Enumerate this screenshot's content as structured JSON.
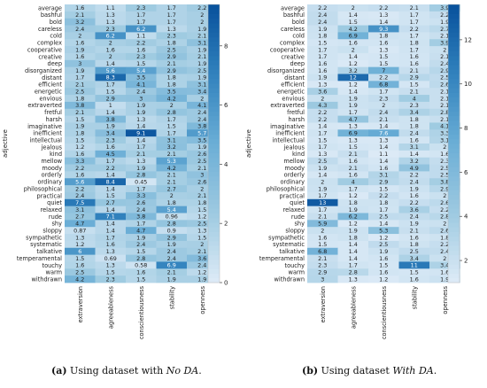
{
  "chart_data": [
    {
      "type": "heatmap",
      "ylabel": "adjective",
      "rows": [
        "average",
        "bashful",
        "bold",
        "careless",
        "cold",
        "complex",
        "cooperative",
        "creative",
        "deep",
        "disorganized",
        "distant",
        "efficient",
        "energetic",
        "envious",
        "extraverted",
        "fretful",
        "harsh",
        "imaginative",
        "inefficient",
        "intellectual",
        "jealous",
        "kind",
        "mellow",
        "moody",
        "orderly",
        "ordinary",
        "philosophical",
        "practical",
        "quiet",
        "relaxed",
        "rude",
        "shy",
        "sloppy",
        "sympathetic",
        "systematic",
        "talkative",
        "temperamental",
        "touchy",
        "warm",
        "withdrawn"
      ],
      "columns": [
        "extraversion",
        "agreeableness",
        "conscientiousness",
        "stability",
        "openness"
      ],
      "values": [
        [
          1.6,
          1.1,
          2.3,
          1.7,
          2.2
        ],
        [
          2.1,
          1.3,
          1.7,
          1.7,
          2
        ],
        [
          3.2,
          1.3,
          1.7,
          1.7,
          2
        ],
        [
          2.4,
          2.3,
          6.2,
          1.3,
          1.9
        ],
        [
          2,
          6.2,
          1.1,
          2.3,
          2.1
        ],
        [
          1.6,
          2,
          2.2,
          1.8,
          3.1
        ],
        [
          1.9,
          1.6,
          1.6,
          2.5,
          1.9
        ],
        [
          1.6,
          2,
          2.3,
          2.9,
          2.1
        ],
        [
          3,
          1.4,
          1.5,
          2.1,
          1.9
        ],
        [
          1.9,
          5.6,
          5.4,
          2.9,
          2.5
        ],
        [
          1.7,
          8.3,
          3.5,
          1.8,
          1.9
        ],
        [
          2.1,
          1.7,
          4.1,
          1.8,
          3.1
        ],
        [
          2.5,
          1.5,
          2.4,
          3.5,
          3.4
        ],
        [
          1.8,
          2.9,
          3,
          4.2,
          2
        ],
        [
          3.8,
          1,
          1.9,
          2,
          4.1
        ],
        [
          2.1,
          1.4,
          1.9,
          2.8,
          2.4
        ],
        [
          1.5,
          3.8,
          1.3,
          1.7,
          2.4
        ],
        [
          1.9,
          1.9,
          1.4,
          1.5,
          3.8
        ],
        [
          1.8,
          3.4,
          9.1,
          1.7,
          5.7
        ],
        [
          1.5,
          2.3,
          1.4,
          3.1,
          3.5
        ],
        [
          1.2,
          1.6,
          1.7,
          3.2,
          1.9
        ],
        [
          1.6,
          4.5,
          2.1,
          2.1,
          2.6
        ],
        [
          3.3,
          1.7,
          1.3,
          5.3,
          2.5
        ],
        [
          2.2,
          2.2,
          1.9,
          4.2,
          2.1
        ],
        [
          1.6,
          1.4,
          2.8,
          2.1,
          3
        ],
        [
          5.6,
          8.4,
          0.45,
          2.1,
          2.6
        ],
        [
          2.2,
          1.4,
          1.7,
          2.7,
          2
        ],
        [
          2.4,
          1.5,
          3.3,
          2,
          2.1
        ],
        [
          7.5,
          2.7,
          2.6,
          1.8,
          1.8
        ],
        [
          3.1,
          1.4,
          2.4,
          5.4,
          1.5
        ],
        [
          2.7,
          7.1,
          3.8,
          0.96,
          1.2
        ],
        [
          4.7,
          1.4,
          1.7,
          2.8,
          2.5
        ],
        [
          0.87,
          1.4,
          4.7,
          0.9,
          1.3
        ],
        [
          1.3,
          1.7,
          1.9,
          2.9,
          1.5
        ],
        [
          1.2,
          1.6,
          2.4,
          1.9,
          2
        ],
        [
          6,
          1.3,
          1.5,
          2.4,
          2.1
        ],
        [
          1.5,
          0.69,
          2.8,
          2.4,
          3.6
        ],
        [
          1.6,
          1.3,
          0.58,
          6.9,
          2.4
        ],
        [
          2.5,
          1.5,
          1.6,
          2.1,
          1.2
        ],
        [
          4.2,
          2.3,
          1.5,
          1.9,
          1.9
        ]
      ],
      "color_range": [
        0,
        9.4
      ],
      "colorbar_ticks": [
        0,
        2,
        4,
        6,
        8
      ],
      "caption": {
        "label": "(a)",
        "text": "Using dataset with",
        "emph": "No DA",
        "end": "."
      }
    },
    {
      "type": "heatmap",
      "ylabel": "adjective",
      "rows": [
        "average",
        "bashful",
        "bold",
        "careless",
        "cold",
        "complex",
        "cooperative",
        "creative",
        "deep",
        "disorganized",
        "distant",
        "efficient",
        "energetic",
        "envious",
        "extraverted",
        "fretful",
        "harsh",
        "imaginative",
        "inefficient",
        "intellectual",
        "jealous",
        "kind",
        "mellow",
        "moody",
        "orderly",
        "ordinary",
        "philosophical",
        "practical",
        "quiet",
        "relaxed",
        "rude",
        "shy",
        "sloppy",
        "sympathetic",
        "systematic",
        "talkative",
        "temperamental",
        "touchy",
        "warm",
        "withdrawn"
      ],
      "columns": [
        "extraversion",
        "agreeableness",
        "conscientiousness",
        "stability",
        "openness"
      ],
      "values": [
        [
          2.2,
          2,
          2.2,
          2.1,
          3.9
        ],
        [
          2.4,
          1.4,
          1.3,
          1.7,
          2.2
        ],
        [
          2.4,
          1.5,
          1.4,
          1.7,
          1.9
        ],
        [
          1.9,
          4.2,
          9.3,
          2.2,
          2.7
        ],
        [
          1.8,
          6.9,
          1.8,
          1.7,
          2.1
        ],
        [
          1.5,
          1.6,
          1.6,
          1.8,
          3.9
        ],
        [
          1.7,
          2,
          1.3,
          1.7,
          2
        ],
        [
          1.7,
          1.4,
          1.5,
          1.6,
          2.1
        ],
        [
          1.6,
          1.2,
          1.5,
          1.6,
          2.4
        ],
        [
          1.6,
          3.2,
          7,
          2.1,
          2.9
        ],
        [
          1.9,
          12,
          2.2,
          2.9,
          2.5
        ],
        [
          1.3,
          1.2,
          6.8,
          1.5,
          2.6
        ],
        [
          3.6,
          1.4,
          1.7,
          2.1,
          2.1
        ],
        [
          2,
          1.9,
          2.3,
          4,
          2.1
        ],
        [
          4.3,
          1.9,
          2,
          2.3,
          2.1
        ],
        [
          2.2,
          1.7,
          2.4,
          3.4,
          2.8
        ],
        [
          2.2,
          4.7,
          2.1,
          1.8,
          2.1
        ],
        [
          1.4,
          1.3,
          1.4,
          1.8,
          4.1
        ],
        [
          1.7,
          6.9,
          7.6,
          2.4,
          3.3
        ],
        [
          1.5,
          1.3,
          1.3,
          1.6,
          3.1
        ],
        [
          1.7,
          1.5,
          1.4,
          3.1,
          2
        ],
        [
          1.3,
          2.1,
          1.1,
          1.4,
          1.6
        ],
        [
          2.5,
          1.6,
          1.4,
          3.2,
          2.3
        ],
        [
          1.9,
          2.1,
          1.6,
          4.9,
          2.5
        ],
        [
          1.4,
          1.6,
          3.1,
          2.2,
          2.5
        ],
        [
          2,
          4,
          2.9,
          2.4,
          3.8
        ],
        [
          1.9,
          1.7,
          1.5,
          1.9,
          2.9
        ],
        [
          1.7,
          1.2,
          2.2,
          1.6,
          2
        ],
        [
          13,
          1.8,
          1.8,
          2.2,
          2.6
        ],
        [
          1.7,
          1.9,
          1.7,
          3.6,
          2.2
        ],
        [
          2.1,
          6.2,
          2.5,
          2.4,
          2.8
        ],
        [
          5.9,
          1.2,
          1.4,
          1.9,
          2
        ],
        [
          2,
          1.9,
          5.3,
          2.1,
          2.6
        ],
        [
          1.6,
          1.8,
          1.2,
          1.6,
          1.8
        ],
        [
          1.5,
          1.4,
          2.5,
          1.8,
          2.2
        ],
        [
          6.8,
          1.4,
          1.9,
          2.5,
          2.4
        ],
        [
          2.1,
          1.4,
          1.6,
          3.4,
          2
        ],
        [
          2.3,
          1.7,
          1.5,
          11,
          3.4
        ],
        [
          2.9,
          2.8,
          1.6,
          1.5,
          1.6
        ],
        [
          3,
          1.3,
          1.2,
          1.6,
          1.9
        ]
      ],
      "color_range": [
        1,
        13.6
      ],
      "colorbar_ticks": [
        2,
        4,
        6,
        8,
        10,
        12
      ],
      "caption": {
        "label": "(b)",
        "text": "Using dataset",
        "emph": "With DA",
        "end": "."
      }
    }
  ]
}
